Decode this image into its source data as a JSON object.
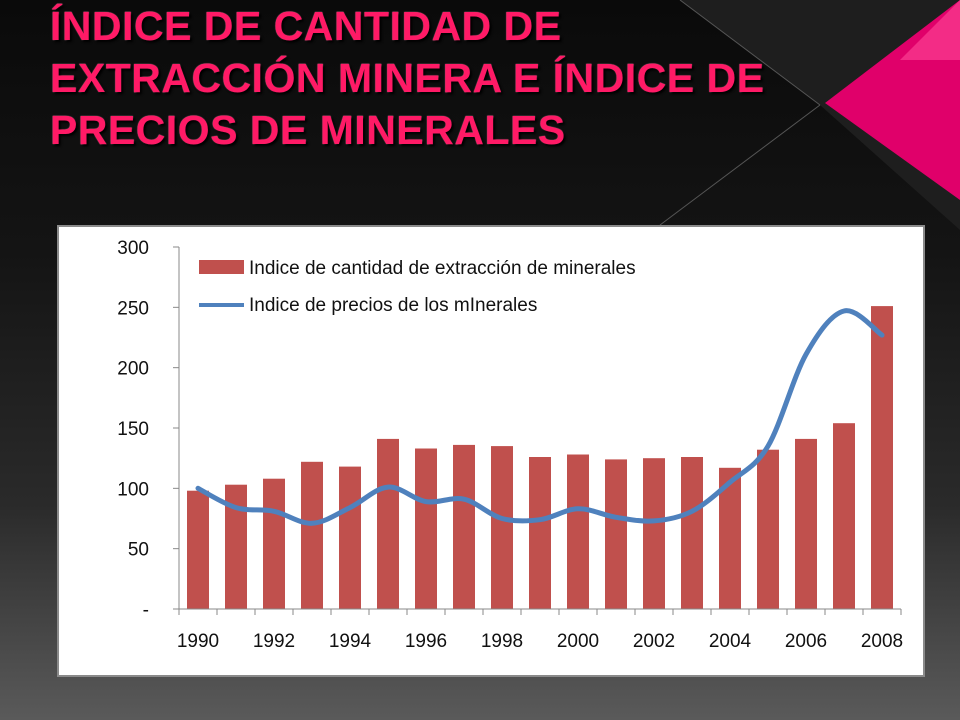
{
  "slide": {
    "title": "ÍNDICE DE CANTIDAD DE\nEXTRACCIÓN MINERA E ÍNDICE DE\nPRECIOS DE MINERALES",
    "title_color": "#ff1a66",
    "accent_color": "#e0006a"
  },
  "chart_data": {
    "type": "bar",
    "x": [
      1990,
      1991,
      1992,
      1993,
      1994,
      1995,
      1996,
      1997,
      1998,
      1999,
      2000,
      2001,
      2002,
      2003,
      2004,
      2005,
      2006,
      2007,
      2008
    ],
    "x_tick_labels": [
      "1990",
      "1992",
      "1994",
      "1996",
      "1998",
      "2000",
      "2002",
      "2004",
      "2006",
      "2008"
    ],
    "y_tick_labels": [
      "300",
      "250",
      "200",
      "150",
      "100",
      "50",
      "-"
    ],
    "ylim": [
      0,
      300
    ],
    "grid": false,
    "legend_position": "top-left",
    "series": [
      {
        "name": "Indice de cantidad de extracción de minerales",
        "type": "bar",
        "color": "#c0504d",
        "values": [
          98,
          103,
          108,
          122,
          118,
          141,
          133,
          136,
          135,
          126,
          128,
          124,
          125,
          126,
          117,
          132,
          141,
          154,
          251
        ]
      },
      {
        "name": "Indice de precios de los mInerales",
        "type": "line",
        "color": "#4f81bd",
        "values": [
          100,
          84,
          81,
          71,
          84,
          101,
          89,
          91,
          75,
          74,
          83,
          76,
          73,
          81,
          105,
          135,
          211,
          247,
          227
        ]
      }
    ]
  }
}
